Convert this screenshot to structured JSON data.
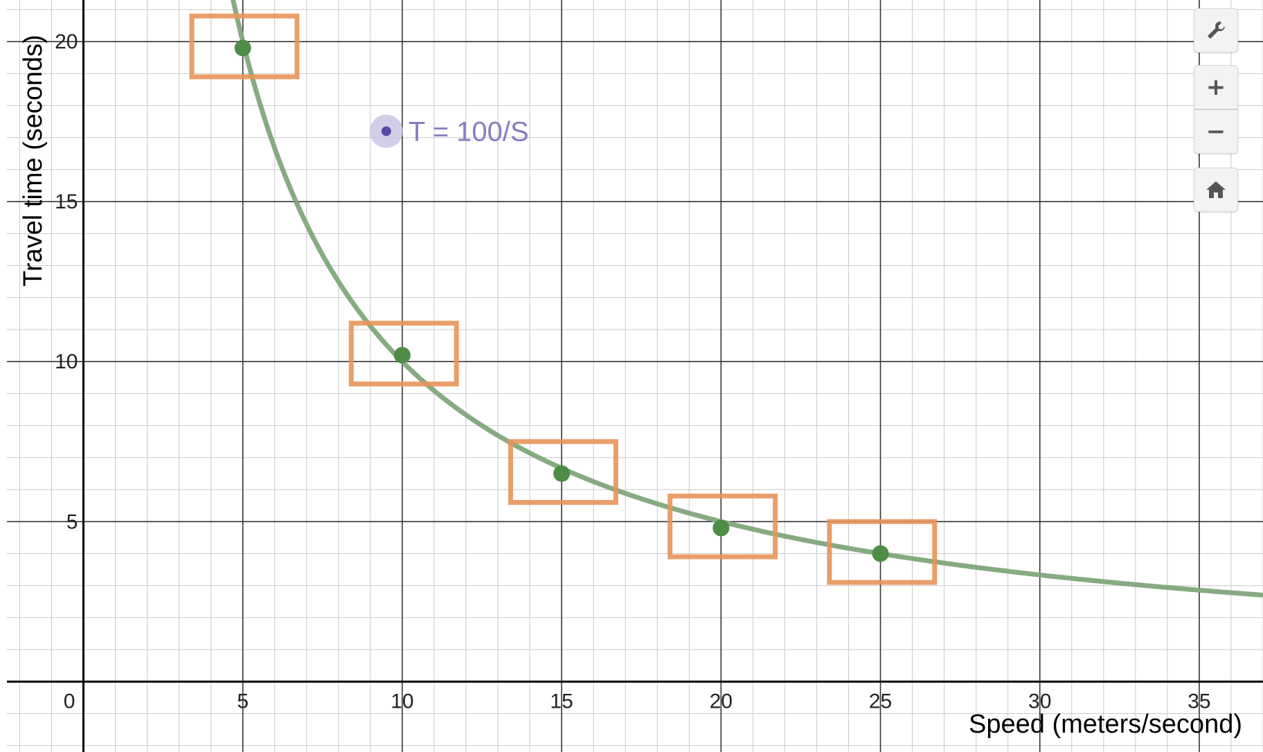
{
  "chart_data": {
    "type": "scatter",
    "xlabel": "Speed (meters/second)",
    "ylabel": "Travel time (seconds)",
    "xlim": [
      -2.4,
      37
    ],
    "ylim": [
      -2.2,
      21.3
    ],
    "x_ticks": [
      5,
      10,
      15,
      20,
      25,
      30,
      35
    ],
    "y_ticks": [
      5,
      10,
      15,
      20
    ],
    "origin_label": "0",
    "grid": true,
    "points": [
      {
        "x": 5,
        "y": 19.8
      },
      {
        "x": 10,
        "y": 10.2
      },
      {
        "x": 15,
        "y": 6.5
      },
      {
        "x": 20,
        "y": 4.8
      },
      {
        "x": 25,
        "y": 4.0
      }
    ],
    "rectangles": [
      {
        "x1": 3.4,
        "x2": 6.7,
        "y1": 18.9,
        "y2": 20.8
      },
      {
        "x1": 8.4,
        "x2": 11.7,
        "y1": 9.3,
        "y2": 11.2
      },
      {
        "x1": 13.4,
        "x2": 16.7,
        "y1": 5.6,
        "y2": 7.5
      },
      {
        "x1": 18.4,
        "x2": 21.7,
        "y1": 3.9,
        "y2": 5.8
      },
      {
        "x1": 23.4,
        "x2": 26.7,
        "y1": 3.1,
        "y2": 5.0
      }
    ],
    "curve": {
      "label": "T = 100/S",
      "coefficient": 100,
      "x_start": 4.6
    },
    "annotation": {
      "text": "T = 100/S",
      "x": 9.5,
      "y": 17.2
    },
    "colors": {
      "curve": "#7fa67a",
      "points": "#4e8c48",
      "rectangles": "#e8945a",
      "annotation": "#8a7cc0",
      "annotation_halo": "#c9c0e2",
      "annotation_dot": "#5a4aa6"
    }
  },
  "controls": {
    "wrench_icon": "wrench-icon",
    "zoom_in_label": "+",
    "zoom_out_label": "−",
    "home_icon": "home-icon"
  }
}
